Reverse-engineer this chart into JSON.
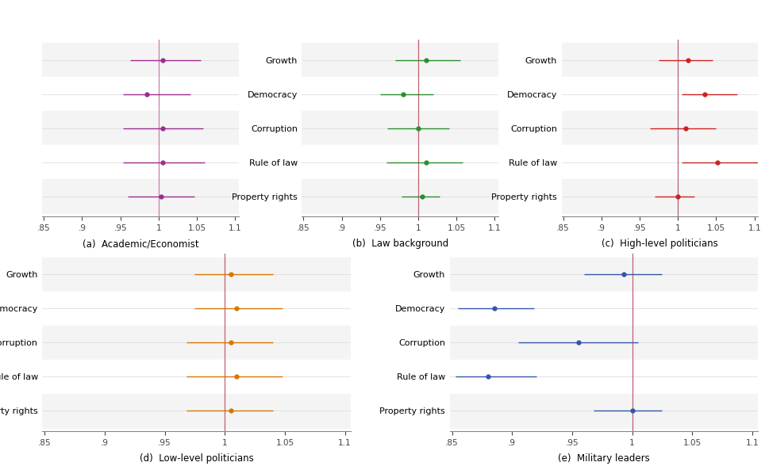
{
  "panels": [
    {
      "label": "(a)  Academic/Economist",
      "color": "#9B2D8E",
      "ref_color": "#C87DAE",
      "categories": [
        "Growth",
        "Democracy",
        "Corruption",
        "Rule of law",
        "Property rights"
      ],
      "centers": [
        1.005,
        0.985,
        1.005,
        1.005,
        1.003
      ],
      "ci_low": [
        0.963,
        0.953,
        0.953,
        0.953,
        0.96
      ],
      "ci_high": [
        1.055,
        1.042,
        1.058,
        1.06,
        1.047
      ],
      "show_ylabels": false,
      "xlim": [
        0.848,
        1.105
      ],
      "xticks": [
        0.85,
        0.9,
        0.95,
        1.0,
        1.05,
        1.1
      ],
      "xticklabels": [
        ".85",
        ".9",
        ".95",
        "1",
        "1.05",
        "1.1"
      ]
    },
    {
      "label": "(b)  Law background",
      "color": "#2D8B2D",
      "ref_color": "#C06070",
      "categories": [
        "Growth",
        "Democracy",
        "Corruption",
        "Rule of law",
        "Property rights"
      ],
      "centers": [
        1.01,
        0.98,
        1.0,
        1.01,
        1.005
      ],
      "ci_low": [
        0.97,
        0.95,
        0.96,
        0.958,
        0.978
      ],
      "ci_high": [
        1.055,
        1.02,
        1.04,
        1.058,
        1.028
      ],
      "show_ylabels": true,
      "xlim": [
        0.848,
        1.105
      ],
      "xticks": [
        0.85,
        0.9,
        0.95,
        1.0,
        1.05,
        1.1
      ],
      "xticklabels": [
        ".85",
        ".9",
        ".95",
        "1",
        "1.05",
        "1.1"
      ]
    },
    {
      "label": "(c)  High-level politicians",
      "color": "#CC2222",
      "ref_color": "#B06080",
      "categories": [
        "Growth",
        "Democracy",
        "Corruption",
        "Rule of law",
        "Property rights"
      ],
      "centers": [
        1.013,
        1.035,
        1.01,
        1.052,
        1.0
      ],
      "ci_low": [
        0.975,
        1.005,
        0.963,
        1.005,
        0.97
      ],
      "ci_high": [
        1.045,
        1.078,
        1.05,
        1.115,
        1.022
      ],
      "show_ylabels": true,
      "xlim": [
        0.848,
        1.105
      ],
      "xticks": [
        0.85,
        0.9,
        0.95,
        1.0,
        1.05,
        1.1
      ],
      "xticklabels": [
        ".85",
        ".9",
        ".95",
        "1",
        "1.05",
        "1.1"
      ]
    },
    {
      "label": "(d)  Low-level politicians",
      "color": "#D47800",
      "ref_color": "#C06070",
      "categories": [
        "Growth",
        "Democracy",
        "Corruption",
        "Rule of law",
        "Property rights"
      ],
      "centers": [
        1.005,
        1.01,
        1.005,
        1.01,
        1.005
      ],
      "ci_low": [
        0.975,
        0.975,
        0.968,
        0.968,
        0.968
      ],
      "ci_high": [
        1.04,
        1.048,
        1.04,
        1.048,
        1.04
      ],
      "show_ylabels": true,
      "xlim": [
        0.848,
        1.105
      ],
      "xticks": [
        0.85,
        0.9,
        0.95,
        1.0,
        1.05,
        1.1
      ],
      "xticklabels": [
        ".85",
        ".9",
        ".95",
        "1",
        "1.05",
        "1.1"
      ]
    },
    {
      "label": "(e)  Military leaders",
      "color": "#3355AA",
      "ref_color": "#C06070",
      "categories": [
        "Growth",
        "Democracy",
        "Corruption",
        "Rule of law",
        "Property rights"
      ],
      "centers": [
        0.993,
        0.885,
        0.955,
        0.88,
        1.0
      ],
      "ci_low": [
        0.96,
        0.855,
        0.905,
        0.853,
        0.968
      ],
      "ci_high": [
        1.025,
        0.918,
        1.005,
        0.92,
        1.025
      ],
      "show_ylabels": true,
      "xlim": [
        0.848,
        1.105
      ],
      "xticks": [
        0.85,
        0.9,
        0.95,
        1.0,
        1.05,
        1.1
      ],
      "xticklabels": [
        ".85",
        ".9",
        ".95",
        "1",
        "1.05",
        "1.1"
      ]
    }
  ],
  "ref_line_x": 1.0,
  "background_color": "#FFFFFF",
  "grid_color": "#D8D8D8",
  "label_fontsize": 8,
  "tick_fontsize": 7.5,
  "subtitle_fontsize": 8.5
}
